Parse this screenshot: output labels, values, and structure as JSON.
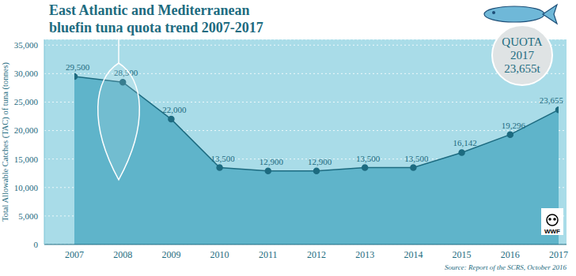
{
  "chart_data": {
    "type": "area",
    "title": "East Atlantic and Mediterranean\nbluefin tuna quota trend 2007-2017",
    "ylabel": "Total Allowable Catches (TAC) of tuna (tonnes)",
    "x": [
      2007,
      2008,
      2009,
      2010,
      2011,
      2012,
      2013,
      2014,
      2015,
      2016,
      2017
    ],
    "xlim": [
      2007,
      2017
    ],
    "xticks": [
      2007,
      2008,
      2009,
      2010,
      2011,
      2012,
      2013,
      2014,
      2015,
      2016,
      2017
    ],
    "values": [
      29500,
      28500,
      22000,
      13500,
      12900,
      12900,
      13500,
      13500,
      16142,
      19296,
      23655
    ],
    "value_labels": [
      "29,500",
      "28,500",
      "22,000",
      "13,500",
      "12,900",
      "12,900",
      "13,500",
      "13,500",
      "16,142",
      "19,296",
      "23,655"
    ],
    "data_labels": true,
    "ylim": [
      0,
      36000
    ],
    "yticks": [
      0,
      {
        "value": 5000,
        "label": "5,000"
      },
      {
        "value": 10000,
        "label": "10,000"
      },
      {
        "value": 15000,
        "label": "15,000"
      },
      {
        "value": 20000,
        "label": "20,000"
      },
      {
        "value": 25000,
        "label": "25,000"
      },
      {
        "value": 30000,
        "label": "30,000"
      },
      {
        "value": 35000,
        "label": "35,000"
      }
    ],
    "grid": true,
    "color": "#5fb4ca",
    "marker": "circle",
    "badge": [
      "QUOTA",
      "2017",
      "23,655t"
    ],
    "source": "Source: Report of the SCRS, October 2016",
    "logo": "WWF"
  }
}
